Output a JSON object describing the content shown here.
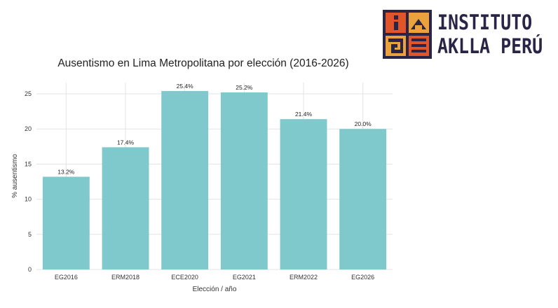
{
  "logo": {
    "line1": "INSTITUTO",
    "line2": "AKLLA PERÚ",
    "mark": "inca-pattern-logo-icon"
  },
  "colors": {
    "bar": "#7fc8cc",
    "grid": "#e3e3e3",
    "brand": "#2a2547"
  },
  "chart_data": {
    "type": "bar",
    "title": "Ausentismo en Lima Metropolitana por elección (2016-2026)",
    "xlabel": "Elección / año",
    "ylabel": "% ausentismo",
    "categories": [
      "EG2016",
      "ERM2018",
      "ECE2020",
      "EG2021",
      "ERM2022",
      "EG2026"
    ],
    "values": [
      13.2,
      17.4,
      25.4,
      25.2,
      21.4,
      20.0
    ],
    "value_labels": [
      "13.2%",
      "17.4%",
      "25.4%",
      "25.2%",
      "21.4%",
      "20.0%"
    ],
    "yticks": [
      0,
      5,
      10,
      15,
      20,
      25
    ],
    "ylim": [
      0,
      26.6
    ],
    "grid": true
  }
}
